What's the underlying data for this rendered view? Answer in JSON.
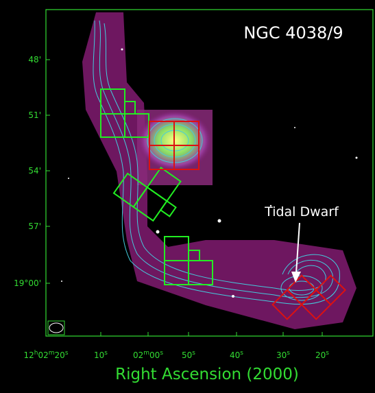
{
  "title": "NGC 4038/9",
  "annotation": "Tidal Dwarf",
  "x_axis": {
    "label": "Right Ascension (2000)",
    "ticks": [
      "12h02m20s",
      "10s",
      "02m00s",
      "50s",
      "40s",
      "30s",
      "20s"
    ]
  },
  "y_axis": {
    "ticks": [
      "48'",
      "51'",
      "54'",
      "57'",
      "19°00'"
    ]
  }
}
